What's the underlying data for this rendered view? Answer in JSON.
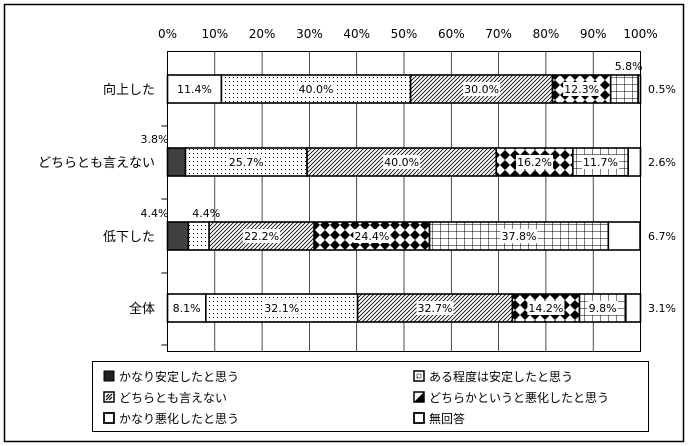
{
  "chart_data": {
    "type": "bar",
    "orientation": "horizontal",
    "stacked": true,
    "xlim": [
      0,
      100
    ],
    "x_ticks": [
      "0%",
      "10%",
      "20%",
      "30%",
      "40%",
      "50%",
      "60%",
      "70%",
      "80%",
      "90%",
      "100%"
    ],
    "categories": [
      "向上した",
      "どちらとも言えない",
      "低下した",
      "全体"
    ],
    "series": [
      {
        "name": "かなり安定したと思う",
        "values": [
          11.4,
          3.8,
          4.4,
          8.1
        ],
        "labels": [
          "11.4%",
          "3.8%",
          "4.4%",
          "8.1%"
        ],
        "pattern": "white"
      },
      {
        "name": "ある程度は安定したと思う",
        "values": [
          40.0,
          25.7,
          4.4,
          32.1
        ],
        "labels": [
          "40.0%",
          "25.7%",
          "4.4%",
          "32.1%"
        ],
        "pattern": "dots"
      },
      {
        "name": "どちらとも言えない",
        "values": [
          30.0,
          40.0,
          22.2,
          32.7
        ],
        "labels": [
          "30.0%",
          "40.0%",
          "22.2%",
          "32.7%"
        ],
        "pattern": "diagonal"
      },
      {
        "name": "どちらかというと悪化したと思う",
        "values": [
          12.3,
          16.2,
          24.4,
          14.2
        ],
        "labels": [
          "12.3%",
          "16.2%",
          "24.4%",
          "14.2%"
        ],
        "pattern": "diamonds"
      },
      {
        "name": "かなり悪化したと思う",
        "values": [
          5.8,
          11.7,
          37.8,
          9.8
        ],
        "labels": [
          "5.8%",
          "11.7%",
          "37.8%",
          "9.8%"
        ],
        "pattern": "grid"
      },
      {
        "name": "無回答",
        "values": [
          0.5,
          2.6,
          6.7,
          3.1
        ],
        "labels": [
          "0.5%",
          "2.6%",
          "6.7%",
          "3.1%"
        ],
        "pattern": "white"
      }
    ],
    "legend": {
      "placement": "bottom",
      "items": [
        {
          "label": "かなり安定したと思う",
          "swatch": "dark"
        },
        {
          "label": "ある程度は安定したと思う",
          "swatch": "dots"
        },
        {
          "label": "どちらとも言えない",
          "swatch": "diagonal"
        },
        {
          "label": "どちらかというと悪化したと思う",
          "swatch": "half"
        },
        {
          "label": "かなり悪化したと思う",
          "swatch": "outline"
        },
        {
          "label": "無回答",
          "swatch": "outline"
        }
      ]
    },
    "grid": true,
    "colors": {
      "first_segment_low": "#404040",
      "stroke": "#000000",
      "gridline": "#000000"
    }
  }
}
